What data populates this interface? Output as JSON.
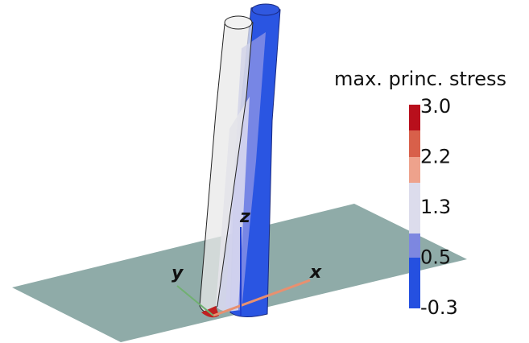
{
  "colorbar": {
    "title": "max. princ. stress",
    "ticks": [
      "3.0",
      "2.2",
      "1.3",
      "0.5",
      "-0.3"
    ]
  },
  "axes": {
    "x": "x",
    "y": "y",
    "z": "z"
  }
}
